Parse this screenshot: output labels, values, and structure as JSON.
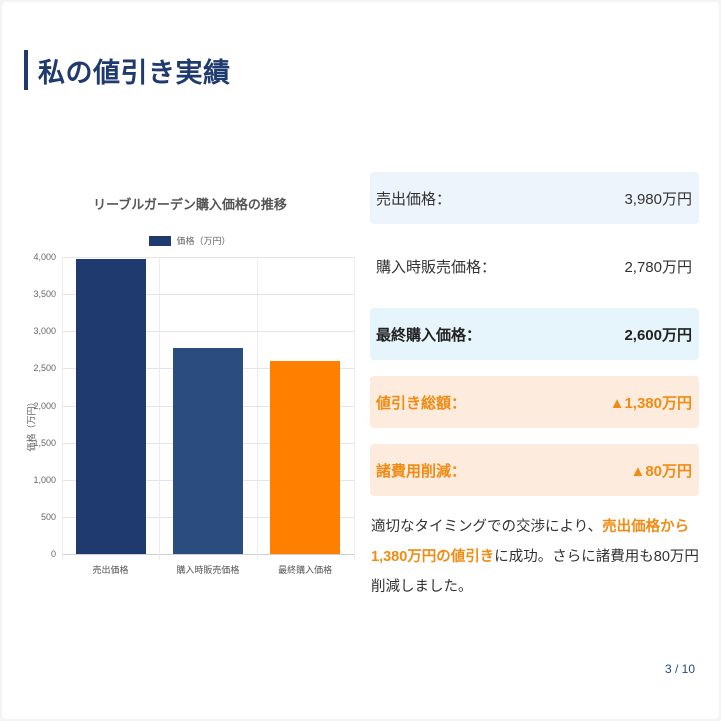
{
  "page": {
    "title": "私の値引き実績",
    "page_indicator": "3 / 10"
  },
  "colors": {
    "navy": "#1e3a6e",
    "navy_light": "#2b4c7e",
    "orange": "#ff8000",
    "accent_text": "#f08c14"
  },
  "chart_data": {
    "type": "bar",
    "title": "リーブルガーデン購入価格の推移",
    "legend": [
      "価格（万円）"
    ],
    "legend_position": "top",
    "xlabel": "",
    "ylabel": "価格（万円）",
    "ylim": [
      0,
      4000
    ],
    "yticks": [
      "4,000",
      "3,500",
      "3,000",
      "2,500",
      "2,000",
      "1,500",
      "1,000",
      "500",
      "0"
    ],
    "grid": true,
    "categories": [
      "売出価格",
      "購入時販売価格",
      "最終購入価格"
    ],
    "series": [
      {
        "name": "価格（万円）",
        "values": [
          3980,
          2780,
          2600
        ],
        "colors": [
          "#1e3a6e",
          "#2b4c7e",
          "#ff8000"
        ]
      }
    ]
  },
  "stats": [
    {
      "label": "売出価格：",
      "value": "3,980万円"
    },
    {
      "label": "購入時販売価格：",
      "value": "2,780万円"
    },
    {
      "label": "最終購入価格：",
      "value": "2,600万円"
    },
    {
      "label": "値引き総額：",
      "value": "▲1,380万円"
    },
    {
      "label": "諸費用削減：",
      "value": "▲80万円"
    }
  ],
  "description": {
    "part1": "適切なタイミングでの交渉により、",
    "highlight": "売出価格から1,380万円の値引き",
    "part2": "に成功。さらに諸費用も80万円削減しました。"
  }
}
